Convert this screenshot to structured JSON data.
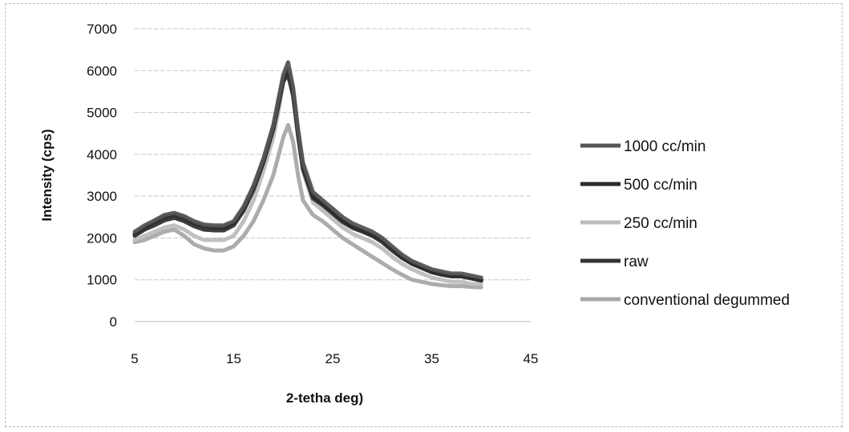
{
  "chart_data": {
    "type": "line",
    "title": "",
    "xlabel": "2-tetha deg)",
    "ylabel": "Intensity (cps)",
    "xlim": [
      5,
      45
    ],
    "ylim": [
      0,
      7000
    ],
    "xticks": [
      "5",
      "15",
      "25",
      "35",
      "45"
    ],
    "yticks": [
      "0",
      "1000",
      "2000",
      "3000",
      "4000",
      "5000",
      "6000",
      "7000"
    ],
    "grid": "horizontal",
    "legend_position": "right",
    "x": [
      5,
      6,
      7,
      8,
      9,
      10,
      11,
      12,
      13,
      14,
      15,
      16,
      17,
      18,
      19,
      19.5,
      20,
      20.5,
      21,
      21.5,
      22,
      23,
      24,
      25,
      26,
      27,
      28,
      29,
      30,
      31,
      32,
      33,
      34,
      35,
      36,
      37,
      38,
      39,
      40
    ],
    "series": [
      {
        "name": "1000 cc/min",
        "color": "#555555",
        "values": [
          2150,
          2300,
          2420,
          2550,
          2600,
          2520,
          2400,
          2320,
          2300,
          2300,
          2400,
          2750,
          3250,
          3900,
          4700,
          5300,
          5900,
          6200,
          5600,
          4600,
          3800,
          3100,
          2900,
          2700,
          2500,
          2350,
          2250,
          2150,
          2000,
          1800,
          1600,
          1450,
          1350,
          1250,
          1200,
          1150,
          1150,
          1100,
          1050
        ]
      },
      {
        "name": "500 cc/min",
        "color": "#2a2a2a",
        "values": [
          2100,
          2250,
          2380,
          2500,
          2550,
          2480,
          2350,
          2280,
          2250,
          2250,
          2350,
          2700,
          3200,
          3850,
          4650,
          5200,
          5800,
          6050,
          5500,
          4500,
          3700,
          3000,
          2820,
          2620,
          2420,
          2280,
          2180,
          2080,
          1950,
          1750,
          1550,
          1400,
          1300,
          1200,
          1150,
          1100,
          1100,
          1050,
          1000
        ]
      },
      {
        "name": "250 cc/min",
        "color": "#bdbdbd",
        "values": [
          1950,
          2050,
          2150,
          2250,
          2300,
          2200,
          2050,
          1950,
          1950,
          1950,
          2050,
          2400,
          2900,
          3600,
          4400,
          5000,
          5700,
          5950,
          5400,
          4400,
          3600,
          2850,
          2650,
          2450,
          2250,
          2100,
          2000,
          1900,
          1750,
          1550,
          1380,
          1250,
          1150,
          1050,
          1000,
          950,
          950,
          900,
          900
        ]
      },
      {
        "name": "raw",
        "color": "#333333",
        "values": [
          2050,
          2200,
          2300,
          2420,
          2480,
          2400,
          2280,
          2200,
          2180,
          2180,
          2300,
          2650,
          3150,
          3800,
          4600,
          5150,
          5750,
          5900,
          5400,
          4450,
          3650,
          2950,
          2780,
          2580,
          2380,
          2240,
          2150,
          2050,
          1900,
          1700,
          1520,
          1380,
          1280,
          1180,
          1120,
          1080,
          1080,
          1030,
          980
        ]
      },
      {
        "name": "conventional degummed",
        "color": "#a8a8a8",
        "values": [
          1900,
          1950,
          2050,
          2150,
          2200,
          2050,
          1850,
          1750,
          1700,
          1700,
          1800,
          2050,
          2400,
          2900,
          3500,
          3950,
          4400,
          4700,
          4300,
          3500,
          2900,
          2550,
          2400,
          2200,
          2000,
          1850,
          1700,
          1550,
          1400,
          1250,
          1120,
          1000,
          950,
          900,
          870,
          850,
          850,
          830,
          820
        ]
      }
    ]
  }
}
